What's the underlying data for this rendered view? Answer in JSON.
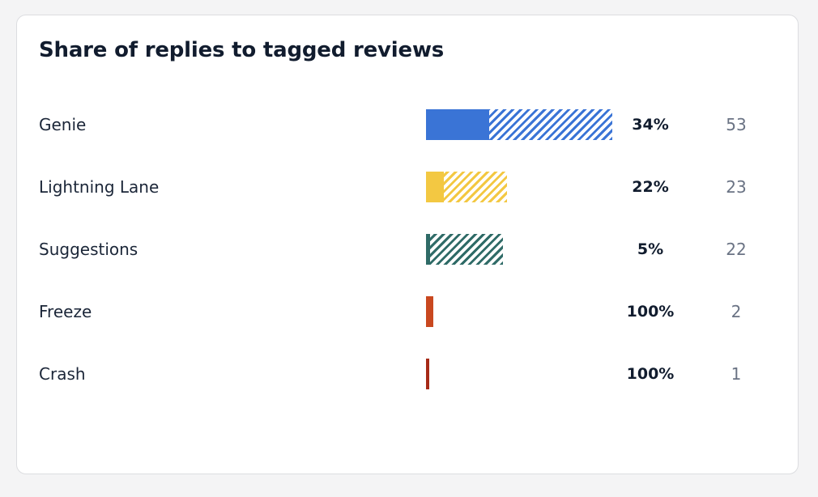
{
  "card": {
    "title": "Share of replies to tagged reviews"
  },
  "chart_data": {
    "type": "bar",
    "title": "Share of replies to tagged reviews",
    "max_count": 53,
    "rows": [
      {
        "label": "Genie",
        "percent": 34,
        "percent_label": "34%",
        "count": 53,
        "count_label": "53",
        "color": "#3a74d6"
      },
      {
        "label": "Lightning Lane",
        "percent": 22,
        "percent_label": "22%",
        "count": 23,
        "count_label": "23",
        "color": "#f3c842"
      },
      {
        "label": "Suggestions",
        "percent": 5,
        "percent_label": "5%",
        "count": 22,
        "count_label": "22",
        "color": "#2f6b67"
      },
      {
        "label": "Freeze",
        "percent": 100,
        "percent_label": "100%",
        "count": 2,
        "count_label": "2",
        "color": "#c9481f"
      },
      {
        "label": "Crash",
        "percent": 100,
        "percent_label": "100%",
        "count": 1,
        "count_label": "1",
        "color": "#a62a17"
      }
    ]
  }
}
